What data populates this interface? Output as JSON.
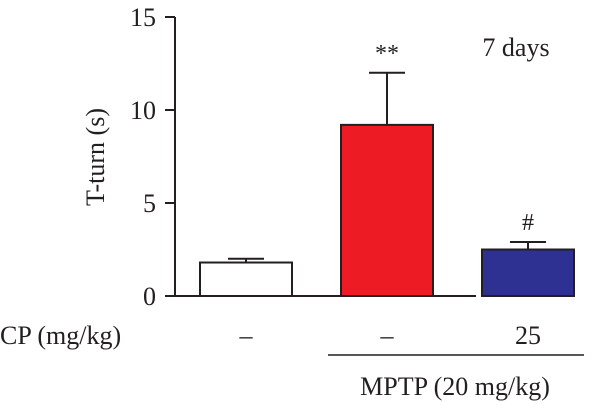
{
  "chart_data": {
    "type": "bar",
    "ylabel": "T-turn (s)",
    "ylim": [
      0,
      15
    ],
    "yticks": [
      0,
      5,
      10,
      15
    ],
    "annotation": "7 days",
    "bars": [
      {
        "cp_label": "–",
        "value": 1.8,
        "error": 0.2,
        "color": "#ffffff",
        "significance": ""
      },
      {
        "cp_label": "–",
        "value": 9.2,
        "error": 2.8,
        "color": "#ed1c24",
        "significance": "**"
      },
      {
        "cp_label": "25",
        "value": 2.5,
        "error": 0.4,
        "color": "#2e3192",
        "significance": "#"
      }
    ],
    "cp_row_label": "CP (mg/kg)",
    "group_label": "MPTP (20 mg/kg)"
  }
}
